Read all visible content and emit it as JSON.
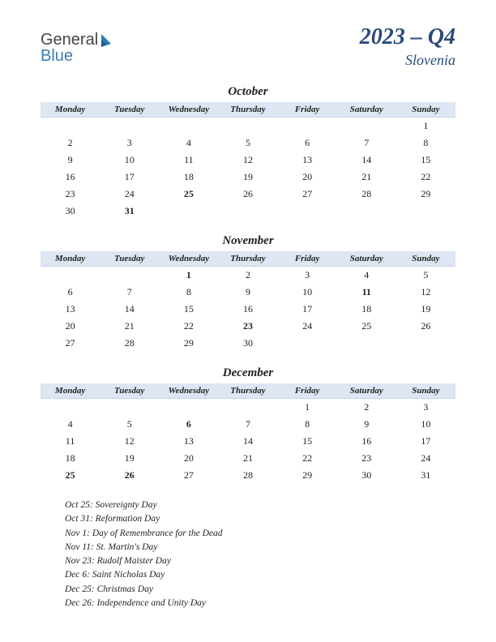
{
  "logo": {
    "general": "General",
    "blue": "Blue"
  },
  "title": "2023 – Q4",
  "subtitle": "Slovenia",
  "day_headers": [
    "Monday",
    "Tuesday",
    "Wednesday",
    "Thursday",
    "Friday",
    "Saturday",
    "Sunday"
  ],
  "header_bg": "#dde6f2",
  "title_color": "#2b4a7a",
  "holiday_color": "#b02020",
  "months": [
    {
      "name": "October",
      "weeks": [
        [
          "",
          "",
          "",
          "",
          "",
          "",
          "1"
        ],
        [
          "2",
          "3",
          "4",
          "5",
          "6",
          "7",
          "8"
        ],
        [
          "9",
          "10",
          "11",
          "12",
          "13",
          "14",
          "15"
        ],
        [
          "16",
          "17",
          "18",
          "19",
          "20",
          "21",
          "22"
        ],
        [
          "23",
          "24",
          "25",
          "26",
          "27",
          "28",
          "29"
        ],
        [
          "30",
          "31",
          "",
          "",
          "",
          "",
          ""
        ]
      ],
      "holidays": [
        "25",
        "31"
      ]
    },
    {
      "name": "November",
      "weeks": [
        [
          "",
          "",
          "1",
          "2",
          "3",
          "4",
          "5"
        ],
        [
          "6",
          "7",
          "8",
          "9",
          "10",
          "11",
          "12"
        ],
        [
          "13",
          "14",
          "15",
          "16",
          "17",
          "18",
          "19"
        ],
        [
          "20",
          "21",
          "22",
          "23",
          "24",
          "25",
          "26"
        ],
        [
          "27",
          "28",
          "29",
          "30",
          "",
          "",
          ""
        ]
      ],
      "holidays": [
        "1",
        "11",
        "23"
      ]
    },
    {
      "name": "December",
      "weeks": [
        [
          "",
          "",
          "",
          "",
          "1",
          "2",
          "3"
        ],
        [
          "4",
          "5",
          "6",
          "7",
          "8",
          "9",
          "10"
        ],
        [
          "11",
          "12",
          "13",
          "14",
          "15",
          "16",
          "17"
        ],
        [
          "18",
          "19",
          "20",
          "21",
          "22",
          "23",
          "24"
        ],
        [
          "25",
          "26",
          "27",
          "28",
          "29",
          "30",
          "31"
        ]
      ],
      "holidays": [
        "6",
        "25",
        "26"
      ]
    }
  ],
  "holiday_notes": [
    "Oct 25: Sovereignty Day",
    "Oct 31: Reformation Day",
    "Nov 1: Day of Remembrance for the Dead",
    "Nov 11: St. Martin's Day",
    "Nov 23: Rudolf Maister Day",
    "Dec 6: Saint Nicholas Day",
    "Dec 25: Christmas Day",
    "Dec 26: Independence and Unity Day"
  ]
}
